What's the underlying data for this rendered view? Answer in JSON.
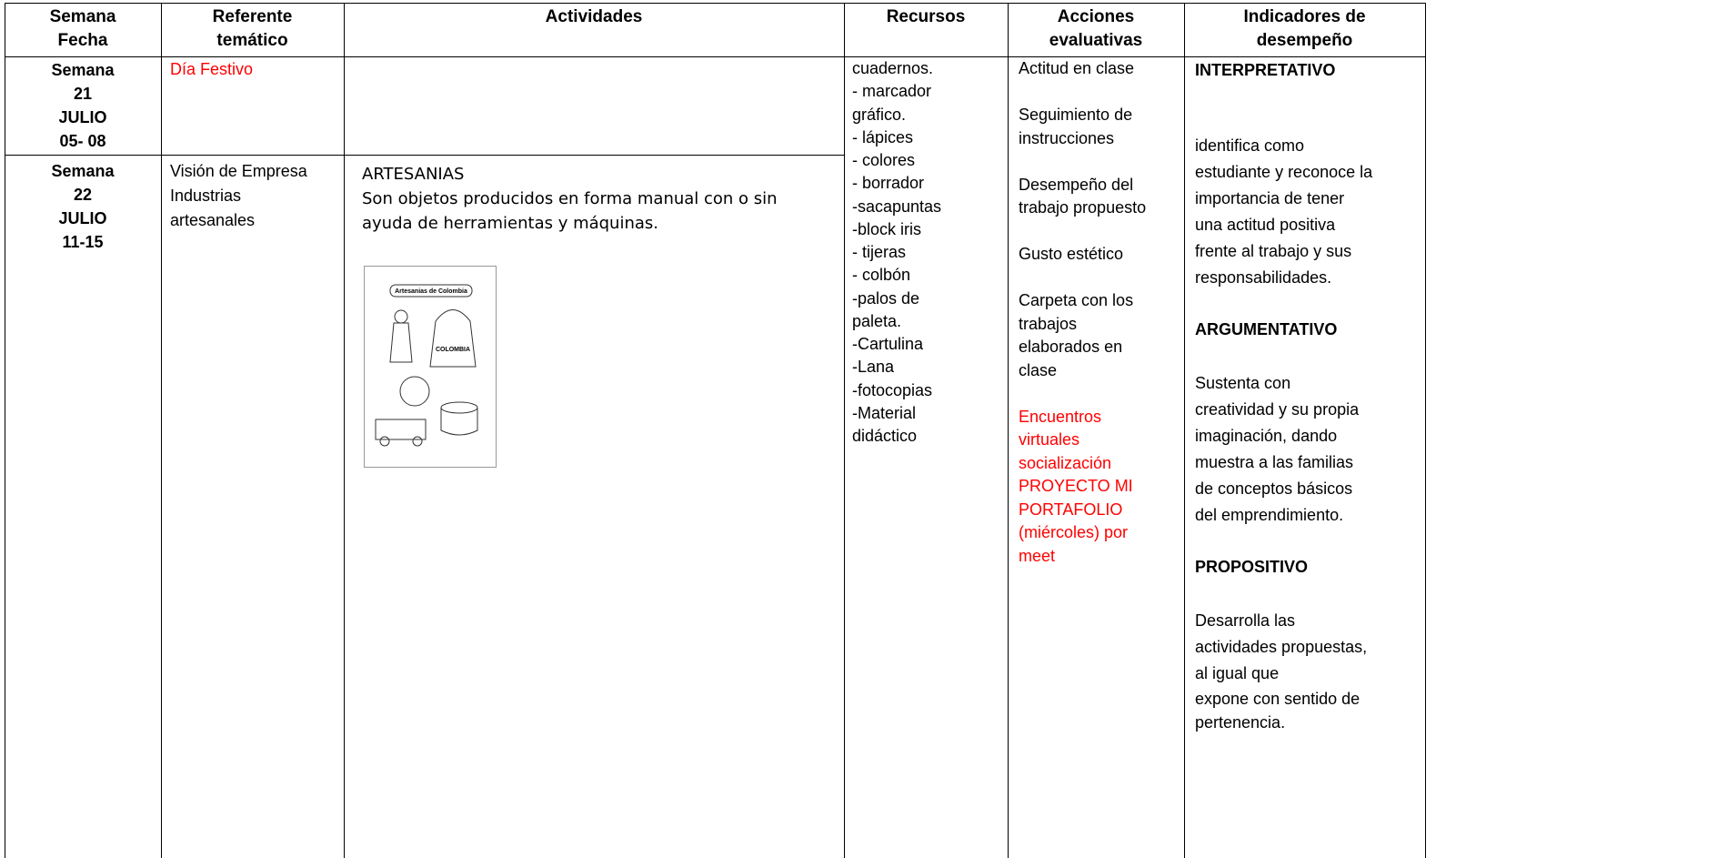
{
  "header": {
    "columns": [
      [
        "Semana",
        "Fecha"
      ],
      [
        "Referente",
        "temático"
      ],
      [
        "Actividades"
      ],
      [
        "Recursos"
      ],
      [
        "Acciones",
        "evaluativas"
      ],
      [
        "Indicadores de",
        "desempeño"
      ]
    ]
  },
  "rows": [
    {
      "week": [
        "Semana",
        "21",
        "JULIO",
        "05- 08"
      ],
      "referent": [
        "Día Festivo"
      ]
    },
    {
      "week": [
        "Semana",
        "22",
        "JULIO",
        "11-15"
      ],
      "referent": [
        "Visión de Empresa",
        "Industrias",
        "artesanales"
      ],
      "activities": {
        "title": "ARTESANIAS",
        "text": "Son objetos producidos en forma manual con o sin ayuda de herramientas y máquinas.",
        "image": {
          "title": "Artesanias de Colombia",
          "label": "COLOMBIA"
        }
      }
    }
  ],
  "resources": [
    "cuadernos.",
    "- marcador",
    "gráfico.",
    "- lápices",
    "- colores",
    "- borrador",
    "-sacapuntas",
    "-block iris",
    "- tijeras",
    "- colbón",
    "-palos de",
    "paleta.",
    "-Cartulina",
    "-Lana",
    "-fotocopias",
    "-Material",
    "didáctico"
  ],
  "evaluation": [
    {
      "lines": [
        "Actitud en clase"
      ]
    },
    {
      "lines": [
        "Seguimiento de",
        "instrucciones"
      ]
    },
    {
      "lines": [
        "Desempeño del",
        "trabajo propuesto"
      ]
    },
    {
      "lines": [
        "Gusto estético"
      ]
    },
    {
      "lines": [
        "Carpeta con los",
        "trabajos",
        "elaborados en",
        "clase"
      ]
    },
    {
      "lines": [
        "Encuentros",
        "virtuales",
        "socialización",
        "PROYECTO MI",
        "PORTAFOLIO",
        "(miércoles) por",
        "meet"
      ],
      "color": "#ff0000"
    }
  ],
  "indicators": [
    {
      "heading": "INTERPRETATIVO",
      "lines": [
        "identifica como",
        "estudiante y reconoce la",
        "importancia de tener",
        "una actitud positiva",
        "frente al trabajo y sus",
        "responsabilidades."
      ]
    },
    {
      "heading": "ARGUMENTATIVO",
      "lines": [
        "Sustenta con",
        "creatividad y su propia",
        "imaginación, dando",
        "muestra a las familias",
        "de conceptos básicos",
        "del emprendimiento."
      ]
    },
    {
      "heading": "PROPOSITIVO",
      "lines": [
        "Desarrolla las",
        "actividades propuestas,",
        "al igual que",
        "expone con sentido de",
        "pertenencia."
      ]
    }
  ]
}
